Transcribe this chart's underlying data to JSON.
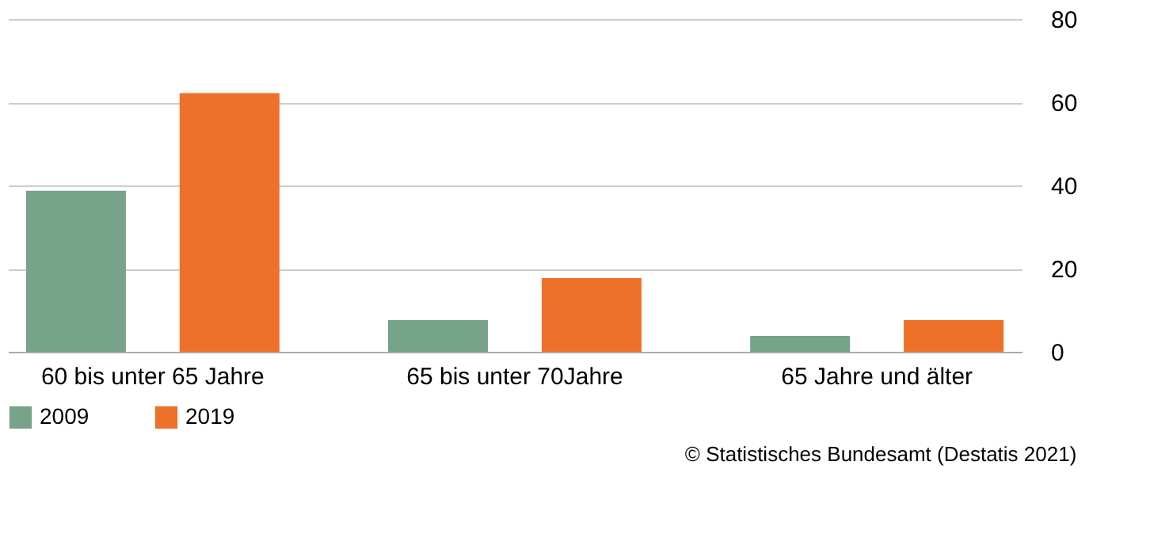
{
  "chart_data": {
    "type": "bar",
    "categories": [
      "60 bis unter 65 Jahre",
      "65 bis unter 70Jahre",
      "65 Jahre und älter"
    ],
    "series": [
      {
        "name": "2009",
        "color": "#76a38a",
        "values": [
          38.7,
          7.6,
          3.8
        ]
      },
      {
        "name": "2019",
        "color": "#ee7129",
        "values": [
          62.2,
          17.7,
          7.6
        ]
      }
    ],
    "ylim": [
      0,
      80
    ],
    "yticks": [
      0,
      20,
      40,
      60,
      80
    ],
    "grid": "y",
    "legend": "bottom left",
    "annotations": [
      "© Statistisches Bundesamt (Destatis 2021)"
    ]
  }
}
